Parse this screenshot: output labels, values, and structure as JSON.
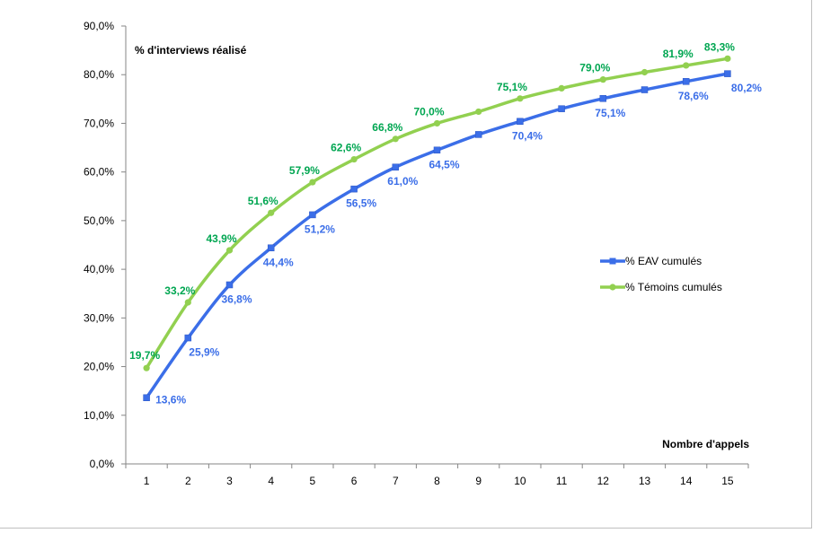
{
  "chart_data": {
    "type": "line",
    "title": "",
    "ylabel": "% d'interviews réalisé",
    "xlabel": "Nombre d'appels",
    "x": [
      1,
      2,
      3,
      4,
      5,
      6,
      7,
      8,
      9,
      10,
      11,
      12,
      13,
      14,
      15
    ],
    "ylim": [
      0,
      90
    ],
    "ytick_labels": [
      "0,0%",
      "10,0%",
      "20,0%",
      "30,0%",
      "40,0%",
      "50,0%",
      "60,0%",
      "70,0%",
      "80,0%",
      "90,0%"
    ],
    "grid": false,
    "legend_position": "right",
    "series": [
      {
        "name": "% EAV cumulés",
        "color": "#3b6ee8",
        "marker": "square",
        "values": [
          13.6,
          25.9,
          36.8,
          44.4,
          51.2,
          56.5,
          61.0,
          64.5,
          67.7,
          70.4,
          73.0,
          75.1,
          76.9,
          78.6,
          80.2
        ],
        "data_labels": [
          "13,6%",
          "25,9%",
          "36,8%",
          "44,4%",
          "51,2%",
          "56,5%",
          "61,0%",
          "64,5%",
          "",
          "70,4%",
          "",
          "75,1%",
          "",
          "78,6%",
          "80,2%"
        ]
      },
      {
        "name": "% Témoins cumulés",
        "color": "#92d050",
        "label_color": "#00a651",
        "marker": "circle",
        "values": [
          19.7,
          33.2,
          43.9,
          51.6,
          57.9,
          62.6,
          66.8,
          70.0,
          72.4,
          75.1,
          77.2,
          79.0,
          80.5,
          81.9,
          83.3
        ],
        "data_labels": [
          "19,7%",
          "33,2%",
          "43,9%",
          "51,6%",
          "57,9%",
          "62,6%",
          "66,8%",
          "70,0%",
          "",
          "75,1%",
          "",
          "79,0%",
          "",
          "81,9%",
          "83,3%"
        ]
      }
    ]
  }
}
